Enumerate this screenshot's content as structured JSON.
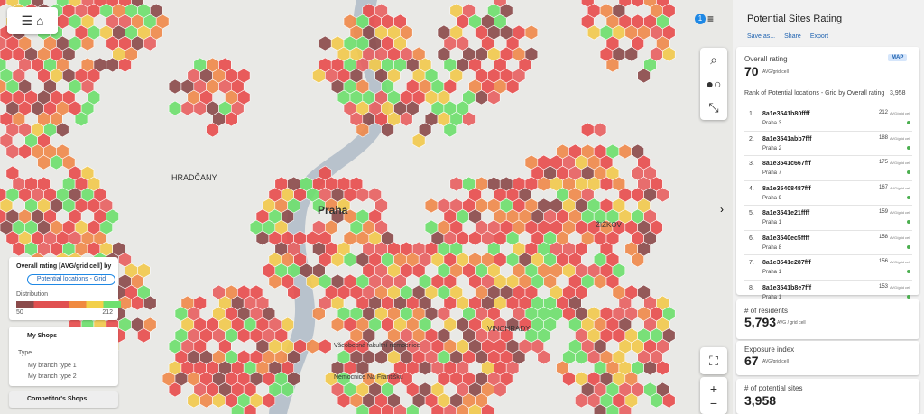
{
  "map": {
    "labels": [
      "HRADČANY",
      "Praha",
      "ŽIŽKOV",
      "VINOHRADY",
      "Všeobecná fakultní nemocnice",
      "Nemocnice Na Františku"
    ],
    "filter_count": 1
  },
  "legend": {
    "title": "Overall rating [AVG/grid cell] by",
    "selector": "Potential locations - Grid",
    "distribution": "Distribution",
    "min": 50,
    "max": 212
  },
  "shops": {
    "title": "My Shops",
    "type": "Type",
    "items": [
      "My branch type 1",
      "My branch type 2"
    ],
    "competitors": "Competitor's Shops"
  },
  "panel": {
    "title": "Potential Sites Rating",
    "actions": [
      "Save as...",
      "Share",
      "Export"
    ],
    "overall": {
      "title": "Overall rating",
      "value": 70,
      "unit": "AVG/grid cell",
      "badge": "MAP"
    },
    "rank": {
      "title": "Rank of Potential locations - Grid by Overall rating",
      "count": "3,958",
      "unit": "AVG/grid cell",
      "items": [
        {
          "n": "1.",
          "id": "8a1e3541b80ffff",
          "district": "Praha 3",
          "value": 212
        },
        {
          "n": "2.",
          "id": "8a1e3541abb7fff",
          "district": "Praha 2",
          "value": 188
        },
        {
          "n": "3.",
          "id": "8a1e3541c667fff",
          "district": "Praha 7",
          "value": 175
        },
        {
          "n": "4.",
          "id": "8a1e35408487fff",
          "district": "Praha 9",
          "value": 167
        },
        {
          "n": "5.",
          "id": "8a1e3541e21ffff",
          "district": "Praha 1",
          "value": 159
        },
        {
          "n": "6.",
          "id": "8a1e3540ec5ffff",
          "district": "Praha 8",
          "value": 158
        },
        {
          "n": "7.",
          "id": "8a1e3541e287fff",
          "district": "Praha 1",
          "value": 156
        },
        {
          "n": "8.",
          "id": "8a1e3541b8e7fff",
          "district": "Praha 1",
          "value": 153
        }
      ]
    },
    "residents": {
      "title": "# of residents",
      "value": "5,793",
      "unit": "AVG / grid cell"
    },
    "exposure": {
      "title": "Exposure index",
      "value": 67,
      "unit": "AVG/grid cell"
    },
    "sites": {
      "title": "# of potential sites",
      "value": "3,958"
    }
  }
}
